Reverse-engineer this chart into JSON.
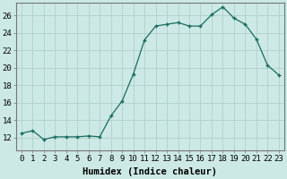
{
  "x": [
    0,
    1,
    2,
    3,
    4,
    5,
    6,
    7,
    8,
    9,
    10,
    11,
    12,
    13,
    14,
    15,
    16,
    17,
    18,
    19,
    20,
    21,
    22,
    23
  ],
  "y": [
    12.5,
    12.8,
    11.8,
    12.1,
    12.1,
    12.1,
    12.2,
    12.1,
    14.5,
    16.2,
    19.3,
    23.2,
    24.8,
    25.0,
    25.2,
    24.8,
    24.8,
    26.1,
    27.0,
    25.7,
    25.0,
    23.3,
    20.3,
    19.2
  ],
  "xlabel": "Humidex (Indice chaleur)",
  "line_color": "#1a6b5e",
  "marker_color": "#1a6b5e",
  "bg_color": "#cce9e5",
  "grid_color": "#aaccc8",
  "ylim": [
    10.5,
    27.5
  ],
  "yticks": [
    12,
    14,
    16,
    18,
    20,
    22,
    24,
    26
  ],
  "xticks": [
    0,
    1,
    2,
    3,
    4,
    5,
    6,
    7,
    8,
    9,
    10,
    11,
    12,
    13,
    14,
    15,
    16,
    17,
    18,
    19,
    20,
    21,
    22,
    23
  ],
  "xlabel_fontsize": 7.5,
  "tick_fontsize": 6.5,
  "spine_color": "#777777"
}
